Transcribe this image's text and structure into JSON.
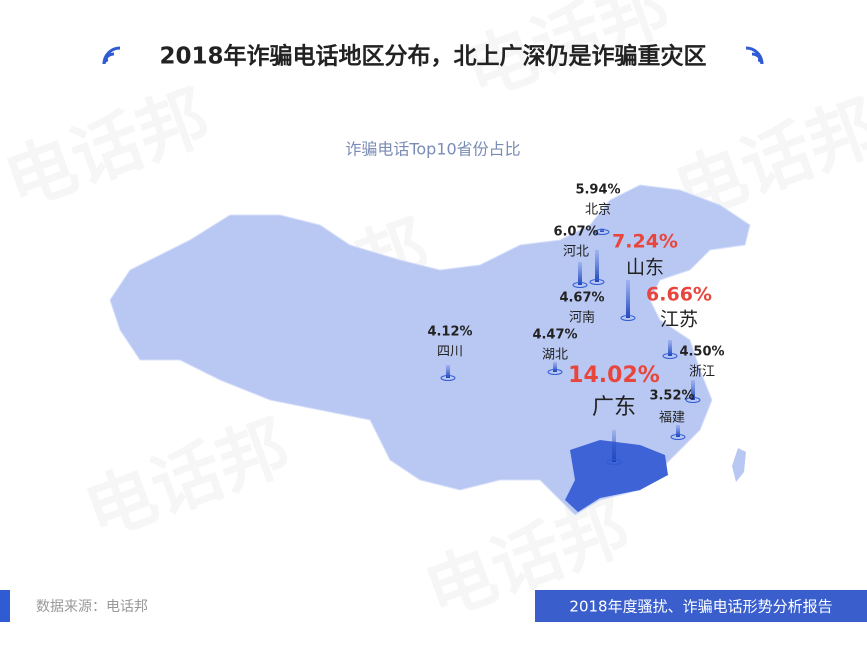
{
  "header": {
    "title": "2018年诈骗电话地区分布，北上广深仍是诈骗重灾区"
  },
  "map": {
    "subtitle": "诈骗电话Top10省份占比",
    "provinces": [
      {
        "name": "北京",
        "share": "5.94%"
      },
      {
        "name": "河北",
        "share": "6.07%"
      },
      {
        "name": "山东",
        "share": "7.24%"
      },
      {
        "name": "河南",
        "share": "4.67%"
      },
      {
        "name": "江苏",
        "share": "6.66%"
      },
      {
        "name": "四川",
        "share": "4.12%"
      },
      {
        "name": "湖北",
        "share": "4.47%"
      },
      {
        "name": "浙江",
        "share": "4.50%"
      },
      {
        "name": "广东",
        "share": "14.02%"
      },
      {
        "name": "福建",
        "share": "3.52%"
      }
    ]
  },
  "watermark": "电话邦",
  "footer": {
    "source": "数据来源：电话邦",
    "report": "2018年度骚扰、诈骗电话形势分析报告"
  }
}
